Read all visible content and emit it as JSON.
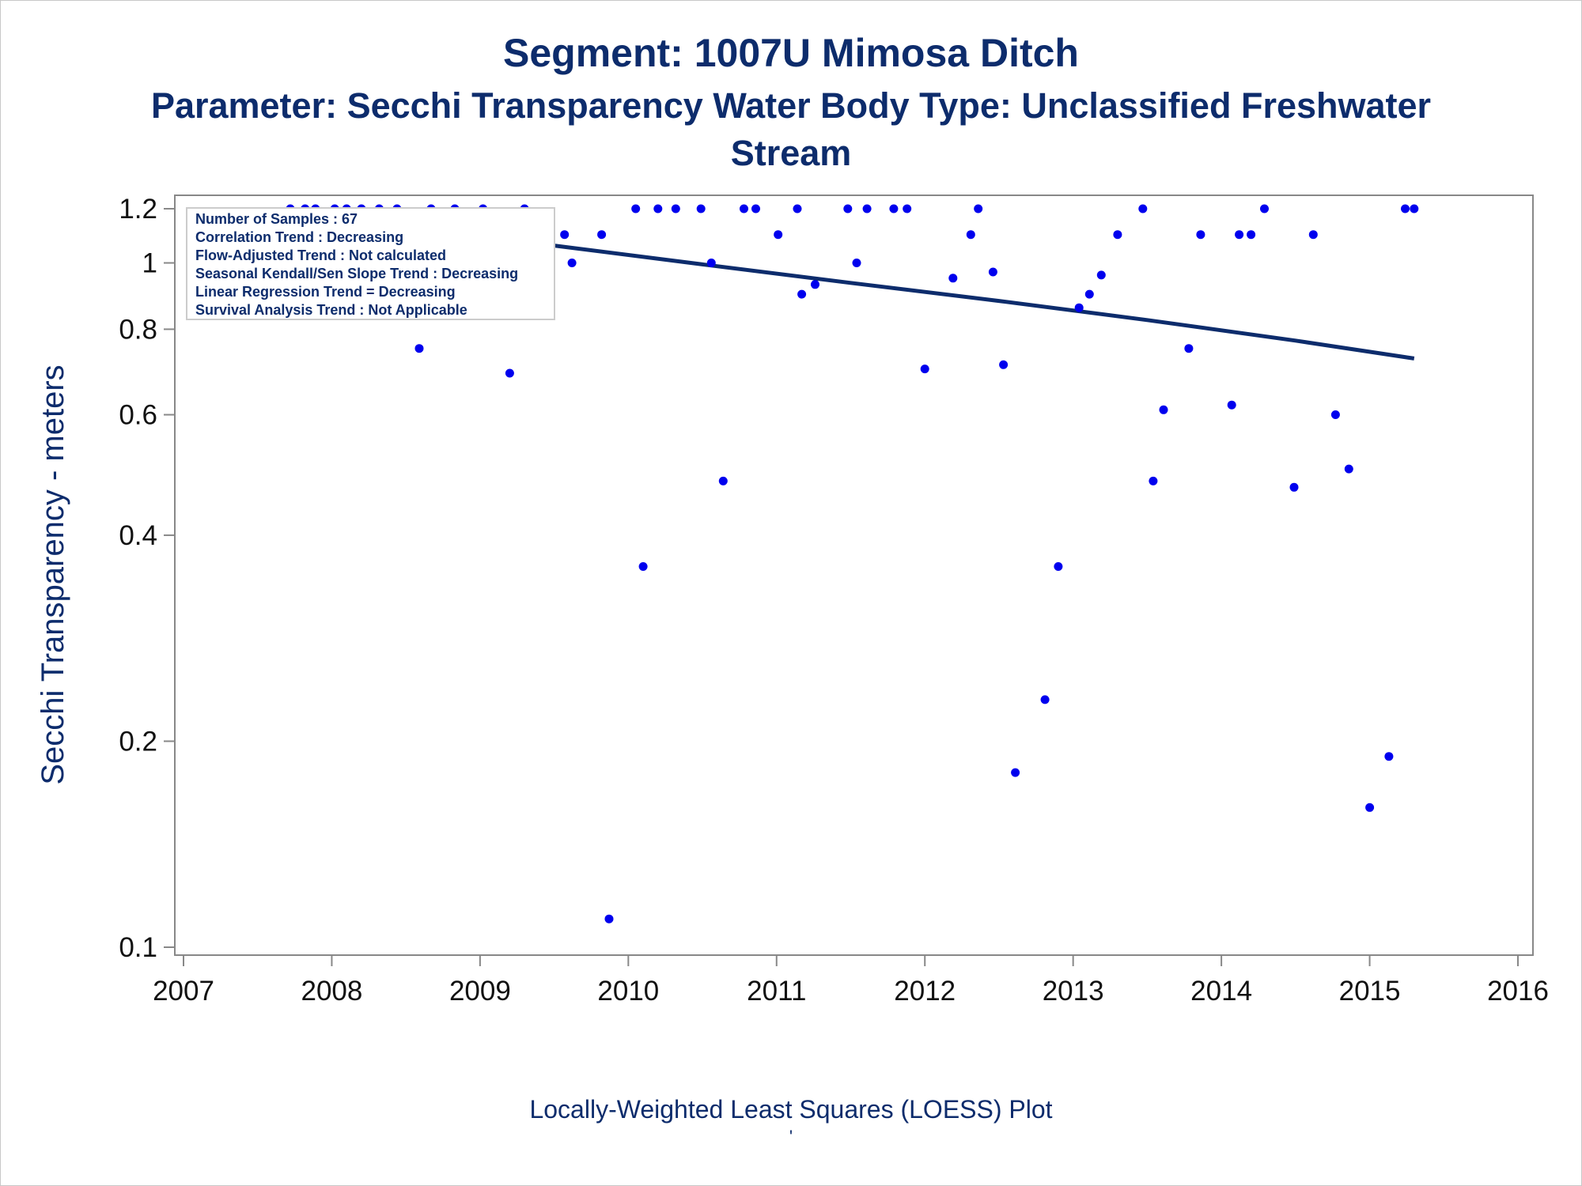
{
  "titles": {
    "line1": "Segment: 1007U  Mimosa Ditch",
    "line2": "Parameter: Secchi Transparency   Water Body Type: Unclassified Freshwater",
    "line3": "Stream"
  },
  "footnote": "Locally-Weighted Least Squares (LOESS) Plot",
  "footmark": "'",
  "chart_data": {
    "type": "scatter",
    "title": "Segment: 1007U  Mimosa Ditch",
    "ylabel": "Secchi Transparency - meters",
    "xlabel": "",
    "y_scale": "log",
    "xlim": [
      2007,
      2016
    ],
    "ylim": [
      0.1,
      1.2
    ],
    "x_ticks": [
      "2007",
      "2008",
      "2009",
      "2010",
      "2011",
      "2012",
      "2013",
      "2014",
      "2015",
      "2016"
    ],
    "y_ticks": [
      "0.1",
      "0.2",
      "0.4",
      "0.6",
      "0.8",
      "1",
      "1.2"
    ],
    "grid": false,
    "legend_placement": "top-left",
    "legend": [
      "Number of Samples : 67",
      "Correlation Trend : Decreasing",
      "Flow-Adjusted Trend : Not calculated",
      "Seasonal Kendall/Sen Slope Trend : Decreasing",
      "Linear Regression Trend = Decreasing",
      "Survival Analysis Trend : Not Applicable"
    ],
    "colors": {
      "points": "#0000ee",
      "trend": "#0d2c6c",
      "text": "#0d2c6c",
      "axis": "#888888"
    },
    "series": [
      {
        "type": "scatter",
        "points": [
          [
            2007.72,
            1.2
          ],
          [
            2007.82,
            1.2
          ],
          [
            2007.89,
            1.2
          ],
          [
            2008.02,
            1.2
          ],
          [
            2008.1,
            1.2
          ],
          [
            2008.2,
            1.2
          ],
          [
            2008.32,
            1.2
          ],
          [
            2008.44,
            1.2
          ],
          [
            2008.59,
            0.75
          ],
          [
            2008.67,
            1.2
          ],
          [
            2008.83,
            1.2
          ],
          [
            2009.02,
            1.2
          ],
          [
            2009.2,
            0.69
          ],
          [
            2009.3,
            1.2
          ],
          [
            2009.43,
            0.97
          ],
          [
            2009.57,
            1.1
          ],
          [
            2009.62,
            1.0
          ],
          [
            2009.82,
            1.1
          ],
          [
            2009.87,
            0.11
          ],
          [
            2010.05,
            1.2
          ],
          [
            2010.1,
            0.36
          ],
          [
            2010.2,
            1.2
          ],
          [
            2010.32,
            1.2
          ],
          [
            2010.49,
            1.2
          ],
          [
            2010.56,
            1.0
          ],
          [
            2010.64,
            0.48
          ],
          [
            2010.78,
            1.2
          ],
          [
            2010.86,
            1.2
          ],
          [
            2011.01,
            1.1
          ],
          [
            2011.14,
            1.2
          ],
          [
            2011.17,
            0.9
          ],
          [
            2011.26,
            0.93
          ],
          [
            2011.48,
            1.2
          ],
          [
            2011.54,
            1.0
          ],
          [
            2011.61,
            1.2
          ],
          [
            2011.79,
            1.2
          ],
          [
            2011.88,
            1.2
          ],
          [
            2012.0,
            0.7
          ],
          [
            2012.19,
            0.95
          ],
          [
            2012.31,
            1.1
          ],
          [
            2012.36,
            1.2
          ],
          [
            2012.46,
            0.97
          ],
          [
            2012.53,
            0.71
          ],
          [
            2012.61,
            0.18
          ],
          [
            2012.81,
            0.23
          ],
          [
            2012.9,
            0.36
          ],
          [
            2013.04,
            0.86
          ],
          [
            2013.11,
            0.9
          ],
          [
            2013.19,
            0.96
          ],
          [
            2013.3,
            1.1
          ],
          [
            2013.47,
            1.2
          ],
          [
            2013.54,
            0.48
          ],
          [
            2013.61,
            0.61
          ],
          [
            2013.78,
            0.75
          ],
          [
            2013.86,
            1.1
          ],
          [
            2014.07,
            0.62
          ],
          [
            2014.12,
            1.1
          ],
          [
            2014.2,
            1.1
          ],
          [
            2014.29,
            1.2
          ],
          [
            2014.49,
            0.47
          ],
          [
            2014.62,
            1.1
          ],
          [
            2014.77,
            0.6
          ],
          [
            2014.86,
            0.5
          ],
          [
            2015.0,
            0.16
          ],
          [
            2015.13,
            0.19
          ],
          [
            2015.24,
            1.2
          ],
          [
            2015.3,
            1.2
          ]
        ]
      },
      {
        "type": "line",
        "points": [
          [
            2007.72,
            1.17
          ],
          [
            2008.5,
            1.11
          ],
          [
            2009.5,
            1.06
          ],
          [
            2010.5,
            0.995
          ],
          [
            2011.5,
            0.935
          ],
          [
            2012.5,
            0.88
          ],
          [
            2013.5,
            0.825
          ],
          [
            2014.5,
            0.77
          ],
          [
            2015.3,
            0.725
          ]
        ]
      }
    ]
  }
}
